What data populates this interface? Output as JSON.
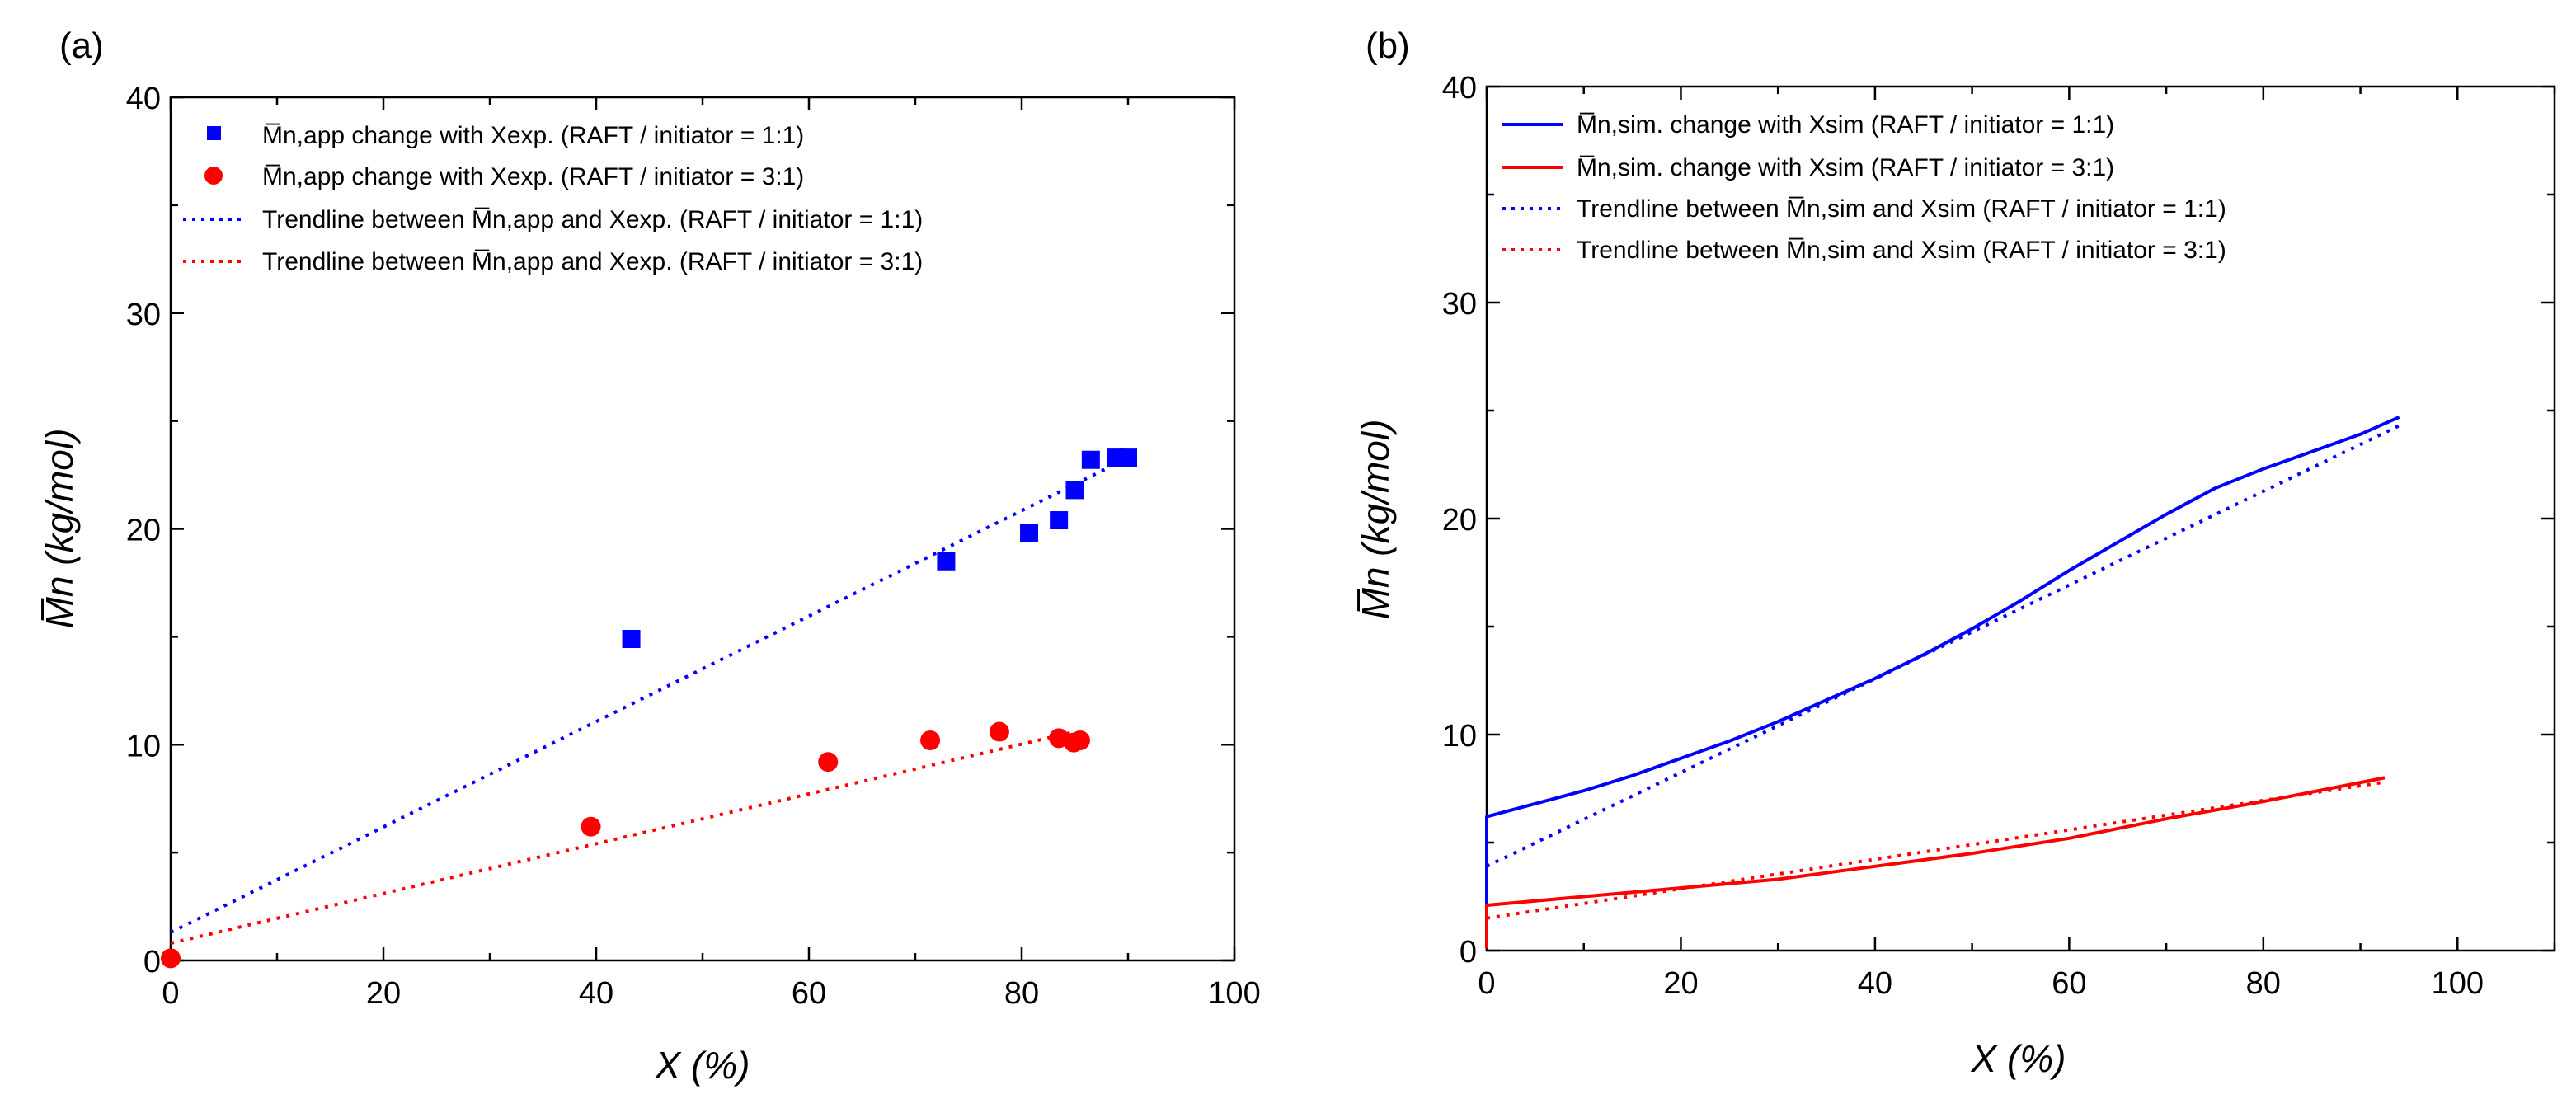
{
  "chart_data": [
    {
      "type": "scatter",
      "panel_label": "(a)",
      "xlabel": "X (%)",
      "ylabel": "M̅n (kg/mol)",
      "xlim": [
        0,
        100
      ],
      "ylim": [
        0,
        40
      ],
      "x_ticks": [
        "0",
        "20",
        "40",
        "60",
        "80",
        "100"
      ],
      "y_ticks": [
        "0",
        "10",
        "20",
        "30",
        "40"
      ],
      "legend_position": "top-left",
      "series": [
        {
          "name": "M̅n,app change with Xexp. (RAFT / initiator = 1:1)",
          "kind": "markers",
          "marker": "square",
          "color": "#0000ff",
          "x": [
            43.3,
            72.9,
            80.7,
            83.5,
            85.0,
            86.5,
            88.9,
            90.0
          ],
          "y": [
            14.9,
            18.5,
            19.8,
            20.4,
            21.8,
            23.2,
            23.3,
            23.3
          ]
        },
        {
          "name": "M̅n,app change with Xexp. (RAFT / initiator = 3:1)",
          "kind": "markers",
          "marker": "circle",
          "color": "#ff0000",
          "x": [
            0,
            39.5,
            61.8,
            71.4,
            77.9,
            83.5,
            84.9,
            85.5
          ],
          "y": [
            0.1,
            6.2,
            9.2,
            10.2,
            10.6,
            10.3,
            10.1,
            10.2
          ]
        },
        {
          "name": "Trendline between M̅n,app and Xexp. (RAFT / initiator = 1:1)",
          "kind": "dotted",
          "color": "#0000ff",
          "x": [
            0,
            88
          ],
          "y": [
            1.3,
            22.8
          ]
        },
        {
          "name": "Trendline between M̅n,app and Xexp. (RAFT / initiator = 3:1)",
          "kind": "dotted",
          "color": "#ff0000",
          "x": [
            0,
            85
          ],
          "y": [
            0.8,
            10.6
          ]
        }
      ]
    },
    {
      "type": "line",
      "panel_label": "(b)",
      "xlabel": "X (%)",
      "ylabel": "M̅n (kg/mol)",
      "xlim": [
        0,
        110
      ],
      "ylim": [
        0,
        40
      ],
      "x_ticks": [
        "0",
        "20",
        "40",
        "60",
        "80",
        "100"
      ],
      "y_ticks": [
        "0",
        "10",
        "20",
        "30",
        "40"
      ],
      "legend_position": "top-left",
      "series": [
        {
          "name": "M̅n,sim. change with Xsim (RAFT / initiator = 1:1)",
          "kind": "solid",
          "color": "#0000ff",
          "x": [
            0,
            0,
            5,
            10,
            15,
            20,
            25,
            30,
            35,
            40,
            45,
            50,
            55,
            60,
            65,
            70,
            75,
            80,
            85,
            90,
            94
          ],
          "y": [
            1.7,
            6.2,
            6.8,
            7.4,
            8.1,
            8.9,
            9.7,
            10.6,
            11.6,
            12.6,
            13.7,
            14.9,
            16.2,
            17.6,
            18.9,
            20.2,
            21.4,
            22.3,
            23.1,
            23.9,
            24.7
          ]
        },
        {
          "name": "M̅n,sim. change with Xsim (RAFT / initiator = 3:1)",
          "kind": "solid",
          "color": "#ff0000",
          "x": [
            0,
            0,
            10,
            20,
            30,
            40,
            50,
            60,
            70,
            80,
            92.5
          ],
          "y": [
            0.1,
            2.1,
            2.5,
            2.9,
            3.3,
            3.9,
            4.5,
            5.2,
            6.1,
            6.9,
            8.0
          ]
        },
        {
          "name": "Trendline between M̅n,sim and Xsim (RAFT / initiator = 1:1)",
          "kind": "dotted",
          "color": "#0000ff",
          "x": [
            0,
            94
          ],
          "y": [
            3.9,
            24.3
          ]
        },
        {
          "name": "Trendline between M̅n,sim and Xsim (RAFT / initiator = 3:1)",
          "kind": "dotted",
          "color": "#ff0000",
          "x": [
            0,
            92.5
          ],
          "y": [
            1.5,
            7.8
          ]
        }
      ]
    }
  ]
}
